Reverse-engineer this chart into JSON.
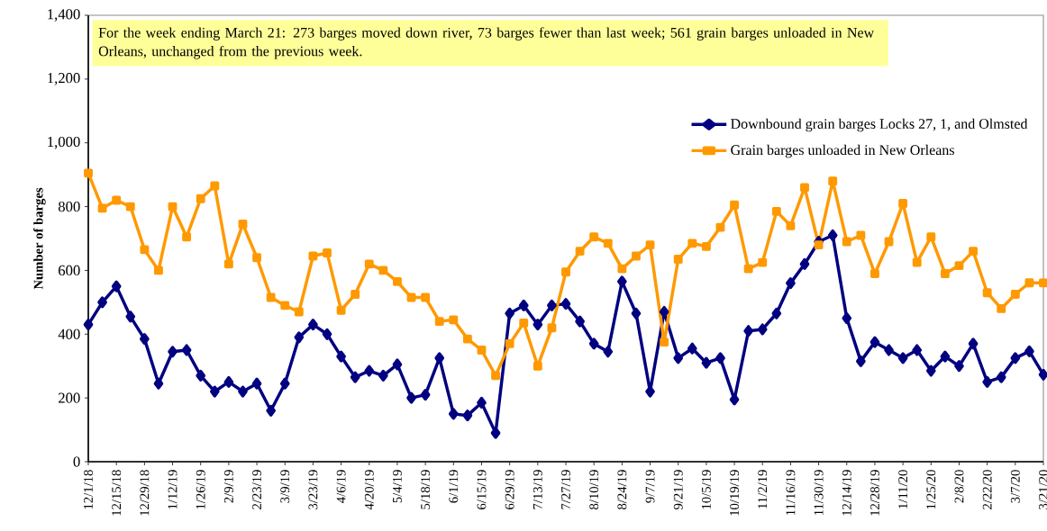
{
  "chart_data": {
    "type": "line",
    "ylabel": "Number of barges",
    "annotations": [
      "For the week ending March 21: 273 barges moved down river, 73 barges fewer than last week; 561 grain barges unloaded in New Orleans, unchanged from the previous week."
    ],
    "categories": [
      "12/1/18",
      null,
      "12/15/18",
      null,
      "12/29/18",
      null,
      "1/12/19",
      null,
      "1/26/19",
      null,
      "2/9/19",
      null,
      "2/23/19",
      null,
      "3/9/19",
      null,
      "3/23/19",
      null,
      "4/6/19",
      null,
      "4/20/19",
      null,
      "5/4/19",
      null,
      "5/18/19",
      null,
      "6/1/19",
      null,
      "6/15/19",
      null,
      "6/29/19",
      null,
      "7/13/19",
      null,
      "7/27/19",
      null,
      "8/10/19",
      null,
      "8/24/19",
      null,
      "9/7/19",
      null,
      "9/21/19",
      null,
      "10/5/19",
      null,
      "10/19/19",
      null,
      "11/2/19",
      null,
      "11/16/19",
      null,
      "11/30/19",
      null,
      "12/14/19",
      null,
      "12/28/19",
      null,
      "1/11/20",
      null,
      "1/25/20",
      null,
      "2/8/20",
      null,
      "2/22/20",
      null,
      "3/7/20",
      null,
      "3/21/20"
    ],
    "series": [
      {
        "name": "Downbound grain barges Locks 27, 1, and Olmsted",
        "color": "#000080",
        "marker": "diamond",
        "values": [
          430,
          500,
          550,
          455,
          385,
          245,
          345,
          350,
          270,
          220,
          250,
          220,
          245,
          160,
          245,
          390,
          430,
          400,
          330,
          265,
          285,
          270,
          305,
          200,
          210,
          325,
          150,
          145,
          185,
          90,
          465,
          490,
          430,
          490,
          495,
          440,
          370,
          345,
          565,
          465,
          220,
          470,
          325,
          355,
          310,
          325,
          195,
          410,
          415,
          465,
          560,
          620,
          690,
          710,
          450,
          315,
          375,
          350,
          325,
          350,
          285,
          330,
          300,
          370,
          250,
          265,
          325,
          346,
          273
        ]
      },
      {
        "name": "Grain barges unloaded in New Orleans",
        "color": "#ff9900",
        "marker": "square",
        "values": [
          905,
          795,
          820,
          800,
          665,
          600,
          800,
          705,
          825,
          865,
          620,
          745,
          640,
          515,
          490,
          470,
          645,
          655,
          475,
          525,
          620,
          600,
          565,
          515,
          515,
          440,
          445,
          385,
          350,
          270,
          370,
          435,
          300,
          420,
          595,
          660,
          705,
          685,
          605,
          645,
          680,
          375,
          635,
          685,
          675,
          735,
          805,
          605,
          625,
          785,
          740,
          860,
          680,
          880,
          690,
          710,
          590,
          690,
          810,
          625,
          705,
          590,
          615,
          660,
          530,
          480,
          525,
          561,
          561
        ]
      }
    ],
    "ylim": [
      0,
      1400
    ],
    "yticks": [
      0,
      200,
      400,
      600,
      800,
      {
        "value": 1000,
        "label": "1,000"
      },
      {
        "value": 1200,
        "label": "1,200"
      },
      {
        "value": 1400,
        "label": "1,400"
      }
    ],
    "grid": false,
    "legend": "top right"
  }
}
